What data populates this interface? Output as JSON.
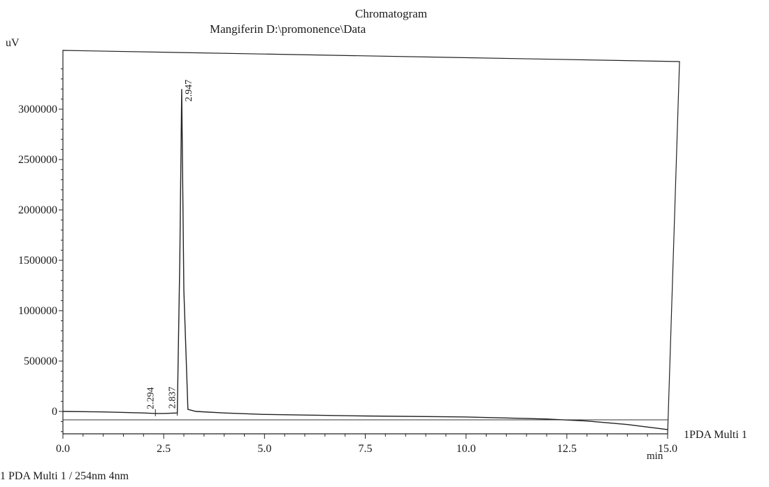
{
  "header": {
    "title": "Chromatogram",
    "subtitle": "Mangiferin D:\\promonence\\Data"
  },
  "footer": {
    "channel_label": "1   PDA Multi 1 / 254nm 4nm"
  },
  "chart_data": {
    "type": "line",
    "ylabel": "uV",
    "xlabel": "min",
    "xlim": [
      0.0,
      15.0
    ],
    "ylim": [
      -200000,
      3400000
    ],
    "x_ticks": [
      "0.0",
      "2.5",
      "5.0",
      "7.5",
      "10.0",
      "12.5",
      "15.0"
    ],
    "y_ticks": [
      "0",
      "500000",
      "1000000",
      "1500000",
      "2000000",
      "2500000",
      "3000000"
    ],
    "series": [
      {
        "name": "1PDA Multi 1",
        "x": [
          0.0,
          1.0,
          2.0,
          2.294,
          2.5,
          2.837,
          2.9,
          2.947,
          3.0,
          3.1,
          3.3,
          4.0,
          5.0,
          7.5,
          10.0,
          12.0,
          13.0,
          14.0,
          15.0
        ],
        "y": [
          0,
          -5000,
          -15000,
          -20000,
          -20000,
          -15000,
          1500000,
          3200000,
          1200000,
          20000,
          0,
          -15000,
          -30000,
          -45000,
          -55000,
          -75000,
          -95000,
          -130000,
          -180000
        ]
      }
    ],
    "peaks": [
      {
        "time": "2.294",
        "x": 2.294,
        "y": -20000
      },
      {
        "time": "2.837",
        "x": 2.837,
        "y": -15000
      },
      {
        "time": "2.947",
        "x": 2.947,
        "y": 3200000
      }
    ],
    "grid": false,
    "legend": "right"
  }
}
